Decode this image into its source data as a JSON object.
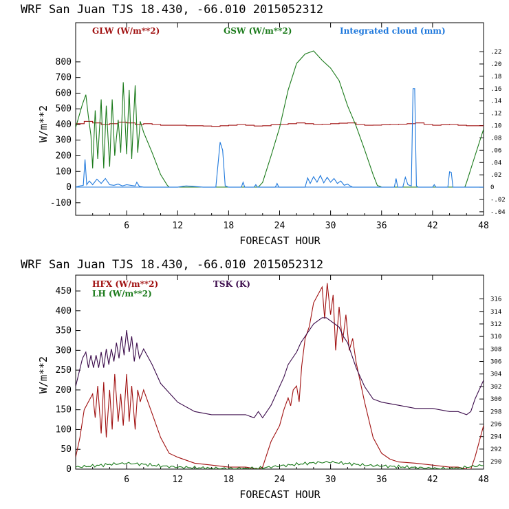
{
  "chart_data": [
    {
      "type": "line",
      "title": "WRF  San Juan TJS  18.430, -66.010  2015052312",
      "xlabel": "FORECAST HOUR",
      "ylabel": "W/m**2",
      "xlim": [
        0,
        48
      ],
      "ylim": [
        -180,
        1050
      ],
      "y2lim": [
        -0.0457,
        0.267
      ],
      "x_ticks": [
        6,
        12,
        18,
        24,
        30,
        36,
        42,
        48
      ],
      "y_ticks": [
        -100,
        0,
        100,
        200,
        300,
        400,
        500,
        600,
        700,
        800
      ],
      "y2_ticks": [
        -0.04,
        -0.02,
        0.0,
        0.02,
        0.04,
        0.06,
        0.08,
        0.1,
        0.12,
        0.14,
        0.16,
        0.18,
        0.2,
        0.22
      ],
      "y2_tick_labels": [
        "-.04",
        "-.02",
        "0",
        ".02",
        ".04",
        ".06",
        ".08",
        ".10",
        ".12",
        ".14",
        ".16",
        ".18",
        ".20",
        ".22"
      ],
      "zero_line": true,
      "series": [
        {
          "name": "GLW (W/m**2)",
          "color": "#a01010",
          "axis": "left",
          "step": true,
          "x": [
            0,
            1,
            2,
            3,
            4,
            5,
            6,
            7,
            8,
            9,
            10,
            11,
            12,
            13,
            14,
            15,
            16,
            17,
            18,
            19,
            20,
            21,
            22,
            23,
            24,
            25,
            26,
            27,
            28,
            29,
            30,
            31,
            32,
            33,
            34,
            35,
            36,
            37,
            38,
            39,
            40,
            41,
            42,
            43,
            44,
            45,
            46,
            47,
            48
          ],
          "y": [
            405,
            420,
            410,
            400,
            405,
            415,
            410,
            400,
            405,
            400,
            395,
            395,
            395,
            392,
            392,
            390,
            388,
            392,
            395,
            400,
            395,
            390,
            392,
            398,
            400,
            405,
            410,
            405,
            400,
            402,
            405,
            408,
            410,
            400,
            395,
            396,
            398,
            400,
            402,
            405,
            410,
            400,
            395,
            398,
            400,
            395,
            392,
            392,
            390
          ]
        },
        {
          "name": "GSW (W/m**2)",
          "color": "#1a7a1a",
          "axis": "left",
          "x": [
            0,
            0.8,
            1.2,
            1.5,
            1.8,
            2,
            2.3,
            2.6,
            3,
            3.3,
            3.6,
            4,
            4.3,
            4.6,
            5,
            5.3,
            5.6,
            6,
            6.3,
            6.6,
            7,
            7.3,
            7.6,
            8,
            9,
            10,
            10.8,
            11,
            21.5,
            22,
            23,
            24,
            25,
            26,
            27,
            28,
            29,
            30,
            31,
            32,
            33,
            34,
            35,
            35.5,
            36,
            45.8,
            46,
            47,
            48
          ],
          "y": [
            380,
            530,
            590,
            450,
            330,
            120,
            490,
            180,
            560,
            120,
            520,
            130,
            560,
            200,
            430,
            220,
            670,
            210,
            620,
            180,
            650,
            220,
            420,
            350,
            220,
            80,
            10,
            0,
            0,
            30,
            200,
            380,
            620,
            790,
            850,
            870,
            810,
            760,
            680,
            520,
            390,
            240,
            80,
            10,
            0,
            0,
            30,
            200,
            370
          ]
        },
        {
          "name": "Integrated cloud (mm)",
          "color": "#1e78dc",
          "axis": "right",
          "x": [
            0,
            0.5,
            0.9,
            1.1,
            1.3,
            1.6,
            2,
            2.5,
            3,
            3.5,
            4,
            4.5,
            5,
            5.5,
            6,
            6.5,
            7,
            7.2,
            7.5,
            8,
            12,
            13,
            15,
            16.5,
            17,
            17.3,
            17.6,
            18,
            19.5,
            19.7,
            19.9,
            21,
            21.2,
            21.4,
            23.5,
            23.7,
            23.9,
            27,
            27.3,
            27.6,
            28,
            28.4,
            28.8,
            29.2,
            29.6,
            30,
            30.4,
            30.8,
            31.2,
            31.6,
            32,
            32.3,
            32.6,
            37.5,
            37.7,
            37.9,
            38.5,
            38.8,
            39.1,
            39.5,
            39.7,
            39.9,
            40.1,
            40.3,
            41,
            42,
            42.2,
            42.4,
            43.8,
            44,
            44.2,
            44.4,
            48
          ],
          "y": [
            0,
            0.002,
            0.003,
            0.045,
            0.004,
            0.01,
            0.004,
            0.013,
            0.006,
            0.014,
            0.004,
            0.003,
            0.005,
            0.002,
            0.004,
            0.003,
            0.002,
            0.008,
            0.001,
            0,
            0,
            0.002,
            0,
            0,
            0.073,
            0.06,
            0.002,
            0,
            0,
            0.008,
            0,
            0,
            0.004,
            0,
            0,
            0.006,
            0,
            0,
            0.015,
            0.006,
            0.017,
            0.008,
            0.019,
            0.007,
            0.016,
            0.008,
            0.014,
            0.006,
            0.01,
            0.003,
            0.005,
            0.002,
            0,
            0,
            0.014,
            0,
            0,
            0.016,
            0.004,
            0.002,
            0.16,
            0.16,
            0.002,
            0,
            0,
            0,
            0.004,
            0,
            0,
            0.025,
            0.024,
            0,
            0
          ]
        }
      ]
    },
    {
      "type": "line",
      "title": "WRF  San Juan TJS  18.430, -66.010  2015052312",
      "xlabel": "FORECAST HOUR",
      "ylabel": "W/m**2",
      "xlim": [
        0,
        48
      ],
      "ylim": [
        0,
        490
      ],
      "y2lim": [
        288.8,
        319.8
      ],
      "x_ticks": [
        6,
        12,
        18,
        24,
        30,
        36,
        42,
        48
      ],
      "y_ticks": [
        0,
        50,
        100,
        150,
        200,
        250,
        300,
        350,
        400,
        450
      ],
      "y2_ticks": [
        290,
        292,
        294,
        296,
        298,
        300,
        302,
        304,
        306,
        308,
        310,
        312,
        314,
        316
      ],
      "y2_tick_labels": [
        "290",
        "292",
        "294",
        "296",
        "298",
        "300",
        "302",
        "304",
        "306",
        "308",
        "310",
        "312",
        "314",
        "316"
      ],
      "zero_line": false,
      "legend": [
        {
          "name": "HFX (W/m**2)",
          "color": "#a01010"
        },
        {
          "name": "LH  (W/m**2)",
          "color": "#1a7a1a"
        },
        {
          "name": "TSK (K)",
          "color": "#3a0a4a"
        }
      ],
      "series": [
        {
          "name": "HFX (W/m**2)",
          "color": "#a01010",
          "axis": "left",
          "x": [
            0,
            0.5,
            1,
            1.5,
            2,
            2.3,
            2.6,
            3,
            3.3,
            3.6,
            4,
            4.3,
            4.6,
            5,
            5.3,
            5.6,
            6,
            6.3,
            6.6,
            7,
            7.3,
            7.6,
            8,
            9,
            10,
            11,
            12,
            14,
            16,
            18,
            20,
            21.5,
            22,
            23,
            23.5,
            24,
            24.5,
            25,
            25.3,
            25.6,
            26,
            26.3,
            26.6,
            27,
            27.5,
            28,
            28.5,
            29,
            29.3,
            29.6,
            30,
            30.3,
            30.6,
            31,
            31.4,
            31.8,
            32.2,
            32.6,
            33,
            34,
            35,
            36,
            37,
            38,
            40,
            42,
            44,
            45,
            46,
            46.5,
            47,
            48
          ],
          "y": [
            30,
            80,
            150,
            170,
            190,
            130,
            210,
            90,
            220,
            80,
            200,
            100,
            240,
            120,
            190,
            110,
            240,
            120,
            210,
            100,
            200,
            170,
            200,
            140,
            80,
            40,
            30,
            15,
            10,
            5,
            5,
            0,
            5,
            70,
            90,
            110,
            150,
            180,
            160,
            200,
            210,
            170,
            260,
            330,
            360,
            420,
            440,
            460,
            380,
            470,
            390,
            440,
            300,
            410,
            320,
            390,
            300,
            330,
            270,
            170,
            80,
            40,
            25,
            18,
            15,
            10,
            5,
            5,
            0,
            0,
            30,
            110
          ]
        },
        {
          "name": "LH  (W/m**2)",
          "color": "#1a7a1a",
          "axis": "left",
          "x": [
            0,
            2,
            4,
            6,
            8,
            10,
            12,
            16,
            20,
            22,
            24,
            26,
            28,
            30,
            32,
            34,
            36,
            38,
            40,
            42,
            44,
            46,
            48
          ],
          "y": [
            5,
            8,
            12,
            15,
            12,
            8,
            5,
            2,
            1,
            3,
            8,
            12,
            16,
            18,
            14,
            10,
            8,
            6,
            4,
            2,
            0,
            5,
            10
          ],
          "noise": true
        },
        {
          "name": "TSK (K)",
          "color": "#3a0a4a",
          "axis": "right",
          "x": [
            0,
            0.8,
            1.2,
            1.5,
            1.8,
            2.1,
            2.4,
            2.7,
            3,
            3.3,
            3.6,
            3.9,
            4.2,
            4.5,
            4.8,
            5.1,
            5.4,
            5.7,
            6,
            6.3,
            6.6,
            6.9,
            7.2,
            7.5,
            8,
            9,
            10,
            12,
            14,
            16,
            18,
            20,
            21,
            21.5,
            22,
            23,
            24,
            24.5,
            25,
            25.5,
            26,
            26.5,
            27,
            27.5,
            28,
            28.5,
            29,
            29.5,
            30,
            30.5,
            31,
            31.5,
            32,
            32.5,
            33,
            34,
            35,
            36,
            38,
            40,
            42,
            44,
            45,
            46,
            46.5,
            47,
            48
          ],
          "y": [
            302,
            306.5,
            307.5,
            305,
            307,
            305,
            307,
            305,
            307.5,
            305,
            308,
            305.5,
            308,
            306,
            309,
            306.5,
            310,
            307,
            311,
            307.5,
            310,
            306,
            309,
            306.5,
            308,
            305.5,
            302.5,
            299.5,
            298,
            297.5,
            297.5,
            297.5,
            297,
            298,
            297,
            299,
            302,
            303.5,
            305.5,
            306.5,
            307.5,
            309,
            310,
            311,
            312,
            312.5,
            313,
            313,
            312.5,
            312,
            311.5,
            310,
            309,
            307,
            305,
            302,
            300,
            299.5,
            299,
            298.5,
            298.5,
            298,
            298,
            297.5,
            298,
            300,
            303
          ]
        }
      ]
    }
  ]
}
